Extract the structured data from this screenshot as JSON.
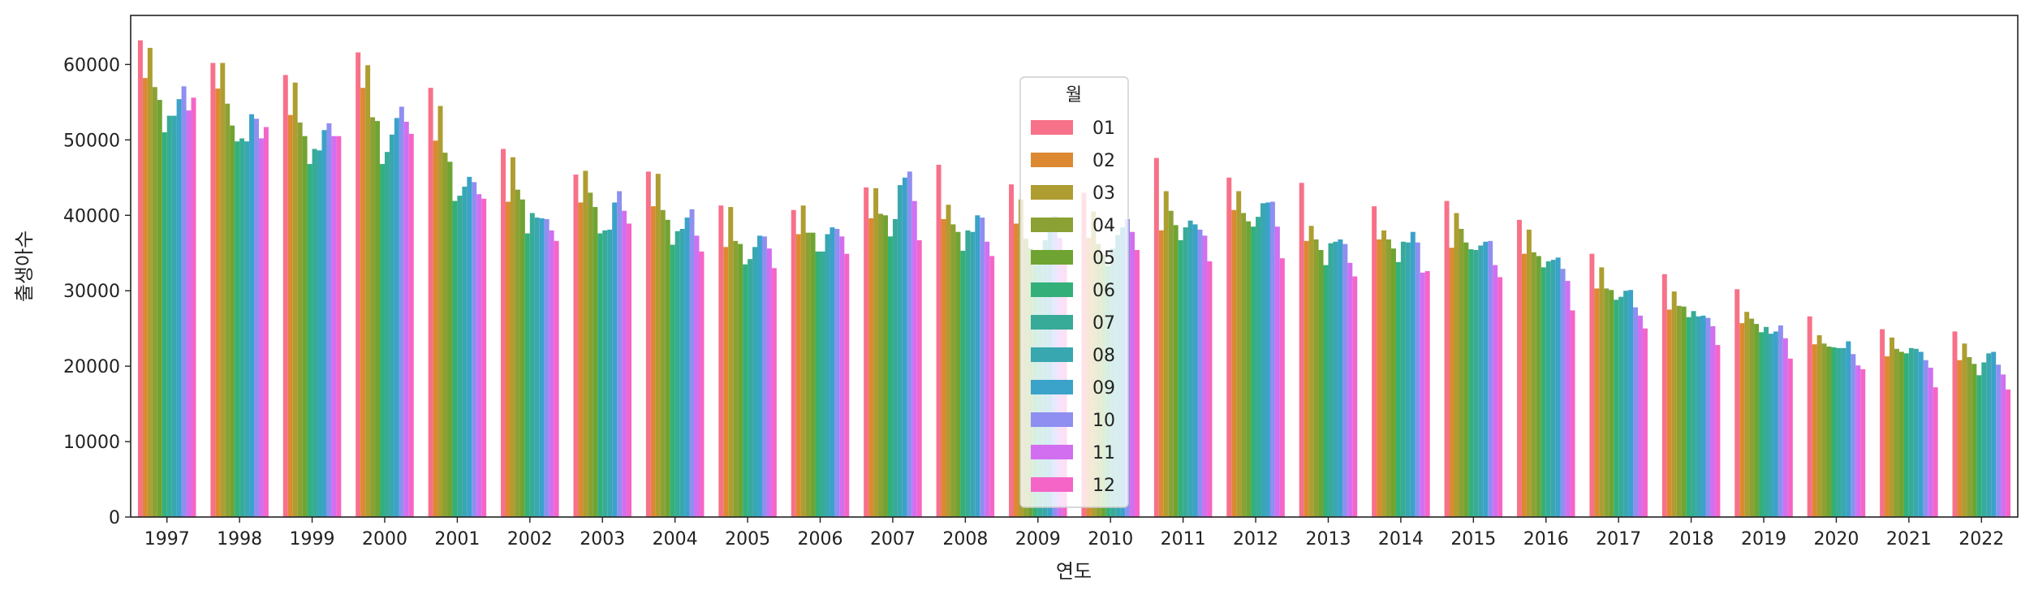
{
  "chart_data": {
    "type": "bar",
    "xlabel": "연도",
    "ylabel": "출생아수",
    "ylim": [
      0,
      66500
    ],
    "yticks": [
      0,
      10000,
      20000,
      30000,
      40000,
      50000,
      60000
    ],
    "grid": false,
    "legend": {
      "title": "월",
      "placement": "upper-center"
    },
    "categories": [
      "1997",
      "1998",
      "1999",
      "2000",
      "2001",
      "2002",
      "2003",
      "2004",
      "2005",
      "2006",
      "2007",
      "2008",
      "2009",
      "2010",
      "2011",
      "2012",
      "2013",
      "2014",
      "2015",
      "2016",
      "2017",
      "2018",
      "2019",
      "2020",
      "2021",
      "2022"
    ],
    "series": [
      {
        "name": "01",
        "color": "#f77189",
        "values": [
          63200,
          60200,
          58600,
          61600,
          56900,
          48800,
          45400,
          45800,
          41300,
          40700,
          43700,
          46700,
          44100,
          43000,
          47600,
          45000,
          44300,
          41200,
          41900,
          39400,
          34900,
          32200,
          30200,
          26600,
          24900,
          24600
        ]
      },
      {
        "name": "02",
        "color": "#dc8932",
        "values": [
          58200,
          56800,
          53300,
          56900,
          49900,
          41800,
          41700,
          41200,
          35800,
          37500,
          39600,
          39500,
          38900,
          37000,
          38000,
          40700,
          36600,
          36800,
          35700,
          34900,
          30300,
          27500,
          25700,
          22900,
          21300,
          20800
        ]
      },
      {
        "name": "03",
        "color": "#ae9d31",
        "values": [
          62200,
          60200,
          57600,
          59900,
          54500,
          47700,
          45900,
          45500,
          41100,
          41300,
          43600,
          41400,
          42100,
          40500,
          43200,
          43200,
          38600,
          38000,
          40300,
          38100,
          33100,
          29900,
          27200,
          24100,
          23800,
          23000
        ]
      },
      {
        "name": "04",
        "color": "#8ba134",
        "values": [
          57000,
          54800,
          52300,
          53000,
          48300,
          43400,
          43000,
          40700,
          36600,
          37700,
          40200,
          38800,
          36900,
          36200,
          40600,
          40300,
          36800,
          36800,
          38200,
          35100,
          30300,
          28000,
          26300,
          23000,
          22300,
          21200
        ]
      },
      {
        "name": "05",
        "color": "#6fa432",
        "values": [
          55300,
          51900,
          50500,
          52500,
          47100,
          42100,
          41100,
          39400,
          36200,
          37700,
          40000,
          37800,
          35600,
          34800,
          38700,
          39200,
          35400,
          35600,
          36400,
          34600,
          30100,
          27900,
          25600,
          22600,
          21900,
          20300
        ]
      },
      {
        "name": "06",
        "color": "#33b07a",
        "values": [
          51000,
          49800,
          46800,
          46800,
          41900,
          37600,
          37600,
          36100,
          33500,
          35200,
          37200,
          35300,
          33400,
          33300,
          36700,
          38500,
          33400,
          33800,
          35500,
          33100,
          28800,
          26500,
          24500,
          22500,
          21700,
          18800
        ]
      },
      {
        "name": "07",
        "color": "#37ab97",
        "values": [
          53200,
          50200,
          48800,
          48400,
          42600,
          40300,
          38000,
          37900,
          34200,
          35200,
          39500,
          38000,
          35400,
          35600,
          38400,
          39800,
          36300,
          36500,
          35400,
          33900,
          29200,
          27300,
          25200,
          22400,
          22400,
          20500
        ]
      },
      {
        "name": "08",
        "color": "#39a7b0",
        "values": [
          53200,
          49800,
          48600,
          50700,
          43800,
          39700,
          38100,
          38200,
          35800,
          37500,
          44000,
          37800,
          36700,
          37400,
          39300,
          41600,
          36500,
          36400,
          36000,
          34100,
          30000,
          26600,
          24300,
          22400,
          22300,
          21700
        ]
      },
      {
        "name": "09",
        "color": "#3ba2ca",
        "values": [
          55400,
          53400,
          51300,
          52900,
          45100,
          39600,
          41700,
          39700,
          37300,
          38400,
          45000,
          40000,
          39600,
          38400,
          38800,
          41700,
          36800,
          37800,
          36500,
          34400,
          30100,
          26700,
          24600,
          23300,
          21900,
          21900
        ]
      },
      {
        "name": "10",
        "color": "#8e8ff0",
        "values": [
          57100,
          52800,
          52200,
          54400,
          44400,
          39500,
          43200,
          40800,
          37200,
          38200,
          45800,
          39700,
          39900,
          39500,
          38100,
          41800,
          36200,
          36400,
          36600,
          32900,
          27800,
          26400,
          25400,
          21600,
          20800,
          20200
        ]
      },
      {
        "name": "11",
        "color": "#d26ff0",
        "values": [
          53900,
          50200,
          50500,
          52400,
          42800,
          38000,
          40600,
          37300,
          35600,
          37200,
          41900,
          36500,
          37000,
          37800,
          37300,
          38500,
          33700,
          32400,
          33400,
          31300,
          26700,
          25300,
          23700,
          20100,
          19800,
          18900
        ]
      },
      {
        "name": "12",
        "color": "#f565c8",
        "values": [
          55600,
          51700,
          50500,
          50800,
          42200,
          36600,
          38900,
          35200,
          33000,
          34900,
          36700,
          34600,
          34400,
          35400,
          33900,
          34300,
          31900,
          32600,
          31800,
          27400,
          25000,
          22800,
          21000,
          19600,
          17200,
          16900
        ]
      }
    ]
  }
}
